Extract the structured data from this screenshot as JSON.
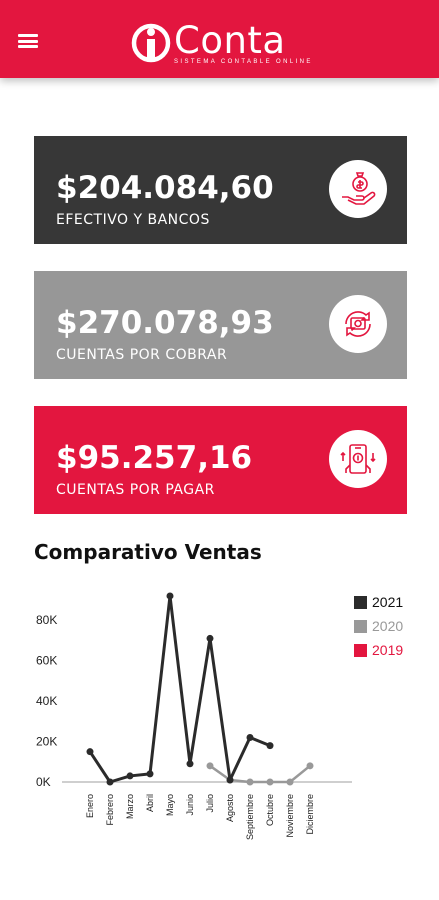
{
  "header": {
    "logo_text": "Conta",
    "logo_tagline": "SISTEMA CONTABLE ONLINE",
    "brand_color": "#e3163f"
  },
  "cards": [
    {
      "amount": "$204.084,60",
      "label": "EFECTIVO Y BANCOS",
      "color": "#373737",
      "icon": "money-hand-icon"
    },
    {
      "amount": "$270.078,93",
      "label": "CUENTAS POR COBRAR",
      "color": "#979797",
      "icon": "money-exchange-icon"
    },
    {
      "amount": "$95.257,16",
      "label": "CUENTAS POR PAGAR",
      "color": "#e3163f",
      "icon": "phone-payment-icon"
    }
  ],
  "chart_title": "Comparativo Ventas",
  "chart_data": {
    "type": "line",
    "title": "Comparativo Ventas",
    "xlabel": "",
    "ylabel": "",
    "categories": [
      "Enero",
      "Febrero",
      "Marzo",
      "Abril",
      "Mayo",
      "Junio",
      "Julio",
      "Agosto",
      "Septiembre",
      "Octubre",
      "Noviembre",
      "Diciembre"
    ],
    "ylim": [
      0,
      90000
    ],
    "yticks": [
      0,
      20000,
      40000,
      60000,
      80000
    ],
    "ytick_labels": [
      "0K",
      "20K",
      "40K",
      "60K",
      "80K"
    ],
    "grid": false,
    "legend_position": "top-right",
    "series": [
      {
        "name": "2021",
        "color": "#2b2b2b",
        "values": [
          15000,
          0,
          3000,
          4000,
          92000,
          9000,
          71000,
          1000,
          22000,
          18000,
          null,
          null
        ]
      },
      {
        "name": "2020",
        "color": "#999999",
        "values": [
          null,
          null,
          null,
          null,
          null,
          null,
          8000,
          1000,
          0,
          0,
          0,
          8000
        ]
      },
      {
        "name": "2019",
        "color": "#e3163f",
        "values": [
          null,
          null,
          null,
          null,
          null,
          null,
          null,
          null,
          null,
          null,
          null,
          null
        ]
      }
    ]
  }
}
